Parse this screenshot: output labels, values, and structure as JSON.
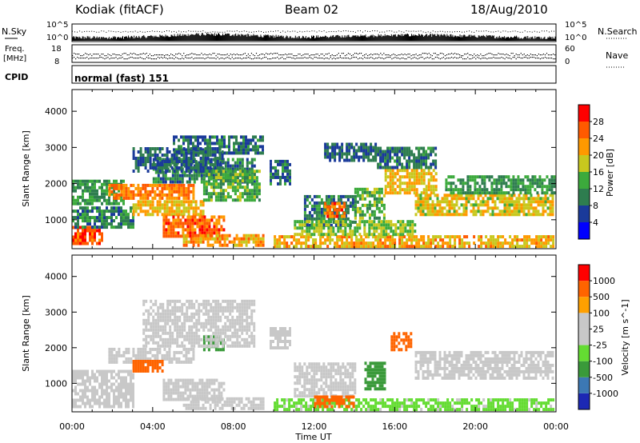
{
  "header": {
    "station": "Kodiak (fitACF)",
    "beam": "Beam 02",
    "date": "18/Aug/2010"
  },
  "panels_labels": {
    "nsky": "N.Sky",
    "nsearch": "N.Search",
    "freq_line1": "Freq.",
    "freq_line2": "[MHz]",
    "nave": "Nave",
    "cpid": "CPID",
    "cpid_value": "normal (fast) 151",
    "noise_tick_top": "10^5",
    "noise_tick_bottom": "10^0",
    "noise_tick_top_r": "10^5",
    "noise_tick_bottom_r": "10^0",
    "freq_tick_top": "18",
    "freq_tick_bottom": "8",
    "nave_tick_top": "60",
    "nave_tick_bottom": "0"
  },
  "chart_data": [
    {
      "type": "heatmap",
      "title": "",
      "xlabel": "Time UT",
      "ylabel": "Slant Range [km]",
      "xlim": [
        0,
        24
      ],
      "ylim": [
        200,
        4600
      ],
      "x_ticks": [
        "00:00",
        "04:00",
        "08:00",
        "12:00",
        "16:00",
        "20:00",
        "00:00"
      ],
      "y_ticks": [
        "1000",
        "2000",
        "3000",
        "4000"
      ],
      "colorbar_label": "Power [dB]",
      "colorbar_ticks": [
        "4",
        "8",
        "12",
        "16",
        "20",
        "24",
        "28"
      ],
      "colorbar_colors": [
        "#0000ff",
        "#1a3a9a",
        "#2e7d4f",
        "#3caa3c",
        "#c8c81e",
        "#ff9900",
        "#ff5a00",
        "#ff0000"
      ],
      "blobs": [
        {
          "t0": 0.0,
          "t1": 1.5,
          "r0": 300,
          "r1": 750,
          "p": 27
        },
        {
          "t0": 0.0,
          "t1": 3.0,
          "r0": 750,
          "r1": 1300,
          "p": 10
        },
        {
          "t0": 0.0,
          "t1": 2.5,
          "r0": 1400,
          "r1": 2100,
          "p": 12
        },
        {
          "t0": 1.8,
          "t1": 6.0,
          "r0": 1550,
          "r1": 1950,
          "p": 24
        },
        {
          "t0": 3.0,
          "t1": 6.5,
          "r0": 1100,
          "r1": 1500,
          "p": 20
        },
        {
          "t0": 4.5,
          "t1": 7.5,
          "r0": 500,
          "r1": 1100,
          "p": 26
        },
        {
          "t0": 4.0,
          "t1": 9.0,
          "r0": 2000,
          "r1": 2700,
          "p": 10
        },
        {
          "t0": 5.0,
          "t1": 9.5,
          "r0": 2800,
          "r1": 3300,
          "p": 9
        },
        {
          "t0": 3.0,
          "t1": 7.5,
          "r0": 2300,
          "r1": 3000,
          "p": 8
        },
        {
          "t0": 6.5,
          "t1": 9.3,
          "r0": 1500,
          "r1": 2300,
          "p": 14
        },
        {
          "t0": 5.5,
          "t1": 9.5,
          "r0": 250,
          "r1": 550,
          "p": 22
        },
        {
          "t0": 9.8,
          "t1": 10.8,
          "r0": 1950,
          "r1": 2600,
          "p": 9
        },
        {
          "t0": 10.0,
          "t1": 23.9,
          "r0": 220,
          "r1": 550,
          "p": 21
        },
        {
          "t0": 11.5,
          "t1": 14.0,
          "r0": 800,
          "r1": 1600,
          "p": 10
        },
        {
          "t0": 12.5,
          "t1": 13.5,
          "r0": 1050,
          "r1": 1450,
          "p": 25
        },
        {
          "t0": 14.0,
          "t1": 15.5,
          "r0": 1000,
          "r1": 1800,
          "p": 14
        },
        {
          "t0": 15.5,
          "t1": 18.0,
          "r0": 1700,
          "r1": 2400,
          "p": 20
        },
        {
          "t0": 15.0,
          "t1": 18.0,
          "r0": 2400,
          "r1": 3000,
          "p": 9
        },
        {
          "t0": 17.0,
          "t1": 23.9,
          "r0": 1100,
          "r1": 1700,
          "p": 19
        },
        {
          "t0": 18.5,
          "t1": 23.9,
          "r0": 1700,
          "r1": 2200,
          "p": 12
        },
        {
          "t0": 12.5,
          "t1": 15.0,
          "r0": 2600,
          "r1": 3100,
          "p": 8
        },
        {
          "t0": 11.0,
          "t1": 17.0,
          "r0": 550,
          "r1": 950,
          "p": 16
        }
      ]
    },
    {
      "type": "heatmap",
      "title": "",
      "xlabel": "Time UT",
      "ylabel": "Slant Range [km]",
      "xlim": [
        0,
        24
      ],
      "ylim": [
        200,
        4600
      ],
      "x_ticks": [
        "00:00",
        "04:00",
        "08:00",
        "12:00",
        "16:00",
        "20:00",
        "00:00"
      ],
      "y_ticks": [
        "1000",
        "2000",
        "3000",
        "4000"
      ],
      "colorbar_label": "Velocity [m s^-1]",
      "colorbar_ticks": [
        "1000",
        "500",
        "100",
        "25",
        "-25",
        "-100",
        "-500",
        "-1000"
      ],
      "colorbar_colors": [
        "#1c28b4",
        "#3c78b4",
        "#3a9a3a",
        "#64dc32",
        "#c8c8c8",
        "#c8c8c8",
        "#ffa000",
        "#ff6400",
        "#ff0000"
      ],
      "blobs": [
        {
          "t0": 0.0,
          "t1": 3.0,
          "r0": 300,
          "r1": 1300,
          "v": 0
        },
        {
          "t0": 1.8,
          "t1": 6.0,
          "r0": 1550,
          "r1": 1950,
          "v": 0
        },
        {
          "t0": 3.0,
          "t1": 4.5,
          "r0": 1300,
          "r1": 1600,
          "v": -120
        },
        {
          "t0": 4.5,
          "t1": 7.5,
          "r0": 500,
          "r1": 1100,
          "v": 0
        },
        {
          "t0": 5.5,
          "t1": 9.5,
          "r0": 250,
          "r1": 550,
          "v": 0
        },
        {
          "t0": 6.5,
          "t1": 7.5,
          "r0": 1900,
          "r1": 2300,
          "v": 120
        },
        {
          "t0": 9.8,
          "t1": 10.8,
          "r0": 1950,
          "r1": 2500,
          "v": 0
        },
        {
          "t0": 10.0,
          "t1": 23.9,
          "r0": 220,
          "r1": 550,
          "v": 40
        },
        {
          "t0": 14.5,
          "t1": 15.5,
          "r0": 800,
          "r1": 1600,
          "v": 150
        },
        {
          "t0": 15.8,
          "t1": 16.8,
          "r0": 1900,
          "r1": 2400,
          "v": -150
        },
        {
          "t0": 17.0,
          "t1": 23.9,
          "r0": 1100,
          "r1": 1900,
          "v": 0
        },
        {
          "t0": 11.0,
          "t1": 14.0,
          "r0": 600,
          "r1": 1500,
          "v": 0
        },
        {
          "t0": 12.0,
          "t1": 14.0,
          "r0": 300,
          "r1": 600,
          "v": -150
        },
        {
          "t0": 3.5,
          "t1": 9.0,
          "r0": 2000,
          "r1": 3300,
          "v": 0
        }
      ]
    }
  ],
  "noise_data": {
    "nsky_level_top": 0.55,
    "nsearch_level": 0.4,
    "freq_level": 0.5,
    "nave_level": 0.4
  }
}
